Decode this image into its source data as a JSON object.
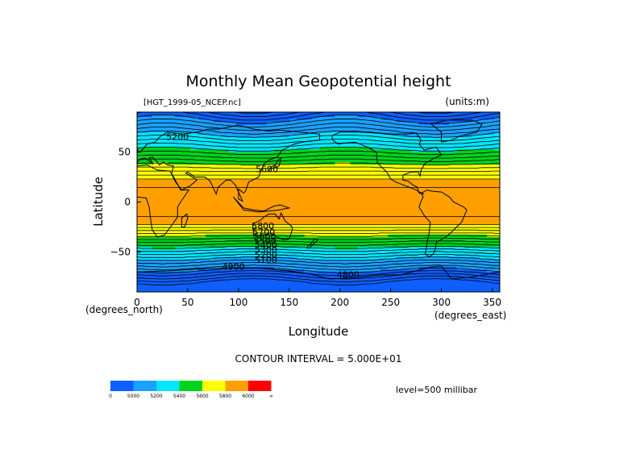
{
  "chart_data": {
    "type": "heatmap",
    "title": "Monthly Mean Geopotential height",
    "dataset_label": "[HGT_1999-05_NCEP.nc]",
    "units_label": "(units:m)",
    "xlabel": "Longitude",
    "ylabel": "Latitude",
    "x_unit_label": "(degrees_east)",
    "y_unit_label": "(degrees_north)",
    "xlim": [
      0,
      357.5
    ],
    "ylim": [
      -90,
      90
    ],
    "x_ticks": [
      0,
      50,
      100,
      150,
      200,
      250,
      300,
      350
    ],
    "y_ticks": [
      50,
      0,
      -50
    ],
    "contour_interval_text": "CONTOUR INTERVAL = 5.000E+01",
    "level_text": "level=500 millibar",
    "contour_labels": [
      {
        "text": "5200",
        "lon": 40,
        "lat": 62
      },
      {
        "text": "5600",
        "lon": 128,
        "lat": 30
      },
      {
        "text": "5800",
        "lon": 124,
        "lat": -27
      },
      {
        "text": "5700",
        "lon": 125,
        "lat": -33
      },
      {
        "text": "5600",
        "lon": 126,
        "lat": -38
      },
      {
        "text": "5500",
        "lon": 126,
        "lat": -42
      },
      {
        "text": "5400",
        "lon": 127,
        "lat": -46
      },
      {
        "text": "5300",
        "lon": 127,
        "lat": -51
      },
      {
        "text": "5200",
        "lon": 127,
        "lat": -56
      },
      {
        "text": "5100",
        "lon": 127,
        "lat": -61
      },
      {
        "text": "4900",
        "lon": 95,
        "lat": -68
      },
      {
        "text": "4800",
        "lon": 208,
        "lat": -76
      }
    ],
    "colorbar": {
      "boundaries": [
        "0",
        "5000",
        "5200",
        "5400",
        "5600",
        "5800",
        "6000",
        "∞"
      ],
      "colors": [
        "#0f5fff",
        "#1aa1ff",
        "#00e6ff",
        "#00d31e",
        "#ffff00",
        "#ffa000",
        "#ff0000"
      ]
    }
  }
}
